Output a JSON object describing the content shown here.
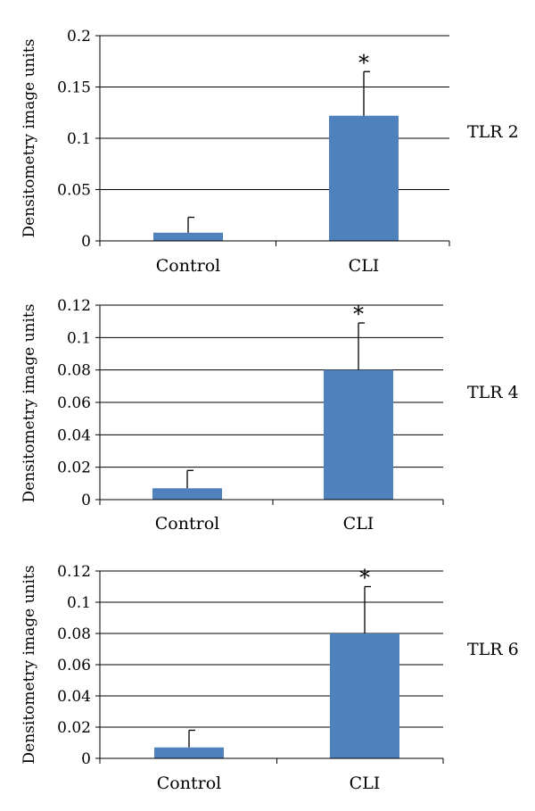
{
  "chart_data": [
    {
      "type": "bar",
      "categories": [
        "Control",
        "CLI"
      ],
      "values": [
        0.008,
        0.122
      ],
      "errors": [
        0.015,
        0.043
      ],
      "annotations": [
        "",
        "*"
      ],
      "ylabel": "Densitometry image units",
      "ylim": [
        0,
        0.2
      ],
      "yticks": [
        0,
        0.05,
        0.1,
        0.15,
        0.2
      ],
      "ytick_labels": [
        "0",
        "0.05",
        "0.1",
        "0.15",
        "0.2"
      ],
      "side_label": "TLR 2",
      "grid": true,
      "bar_color": "#4f81bd"
    },
    {
      "type": "bar",
      "categories": [
        "Control",
        "CLI"
      ],
      "values": [
        0.007,
        0.08
      ],
      "errors": [
        0.011,
        0.029
      ],
      "annotations": [
        "",
        "*"
      ],
      "ylabel": "Densitometry image units",
      "ylim": [
        0,
        0.12
      ],
      "yticks": [
        0,
        0.02,
        0.04,
        0.06,
        0.08,
        0.1,
        0.12
      ],
      "ytick_labels": [
        "0",
        "0.02",
        "0.04",
        "0.06",
        "0.08",
        "0.1",
        "0.12"
      ],
      "side_label": "TLR 4",
      "grid": true,
      "bar_color": "#4f81bd"
    },
    {
      "type": "bar",
      "categories": [
        "Control",
        "CLI"
      ],
      "values": [
        0.007,
        0.08
      ],
      "errors": [
        0.011,
        0.03
      ],
      "annotations": [
        "",
        "*"
      ],
      "ylabel": "Densitometry image units",
      "ylim": [
        0,
        0.12
      ],
      "yticks": [
        0,
        0.02,
        0.04,
        0.06,
        0.08,
        0.1,
        0.12
      ],
      "ytick_labels": [
        "0",
        "0.02",
        "0.04",
        "0.06",
        "0.08",
        "0.1",
        "0.12"
      ],
      "side_label": "TLR 6",
      "grid": true,
      "bar_color": "#4f81bd"
    }
  ]
}
